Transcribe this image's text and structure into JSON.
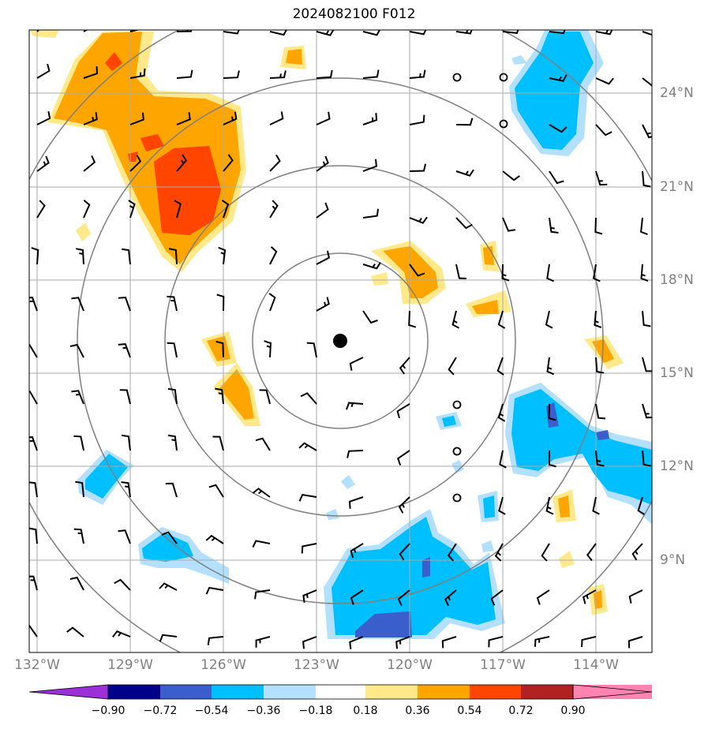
{
  "title": "2024082100 F012",
  "lon_labels": [
    "132°W",
    "129°W",
    "126°W",
    "123°W",
    "120°W",
    "117°W",
    "114°W"
  ],
  "lat_labels": [
    "24°N",
    "21°N",
    "18°N",
    "15°N",
    "12°N",
    "9°N"
  ],
  "colorbar": {
    "ticks": [
      "−0.90",
      "−0.72",
      "−0.54",
      "−0.36",
      "−0.18",
      "0.18",
      "0.36",
      "0.54",
      "0.72",
      "0.90"
    ],
    "colors": [
      "#9b30d9",
      "#00008b",
      "#3a5fcd",
      "#00bfff",
      "#b3e0ff",
      "#ffffff",
      "#ffe98a",
      "#ffa500",
      "#ff4500",
      "#b22222",
      "#ff85b0"
    ]
  },
  "palette": {
    "pos1": "#ffe98a",
    "pos2": "#ffa500",
    "pos3": "#ff4500",
    "neg1": "#b3e0ff",
    "neg2": "#00bfff",
    "neg3": "#3a5fcd",
    "grid": "#aaaaaa",
    "ring": "#808080"
  }
}
